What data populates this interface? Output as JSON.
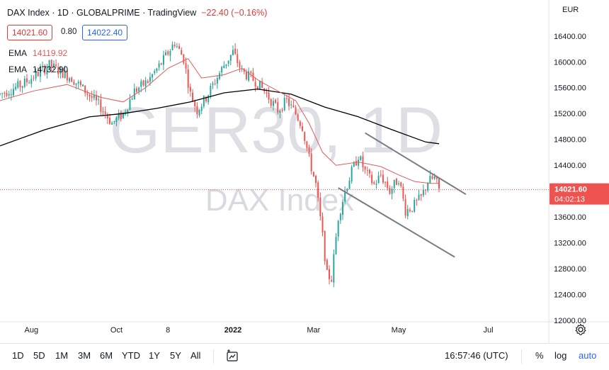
{
  "header": {
    "symbol": "DAX Index",
    "interval": "1D",
    "exchange": "GLOBALPRIME",
    "source": "TradingView",
    "separator": " · ",
    "change": "−22.40 (−0.16%)"
  },
  "quotes": {
    "bid": "14021.60",
    "spread": "0.80",
    "ask": "14022.40"
  },
  "indicators": [
    {
      "label": "EMA",
      "value": "14119.92",
      "color": "#e05c5c"
    },
    {
      "label": "EMA",
      "value": "14732.90",
      "color": "#000000"
    }
  ],
  "watermark": {
    "main": "GER30, 1D",
    "sub": "DAX Index"
  },
  "currency": "EUR",
  "last_price": {
    "price": "14021.60",
    "countdown": "04:02:13",
    "value": 14021.6,
    "color": "#ef5350"
  },
  "colors": {
    "up": "#26a69a",
    "down": "#ef5350",
    "ema_fast": "#e05c5c",
    "ema_slow": "#000000",
    "trendline": "#787b86"
  },
  "bottom_bar": {
    "timeframes": [
      "1D",
      "5D",
      "1M",
      "3M",
      "6M",
      "YTD",
      "1Y",
      "5Y",
      "All"
    ],
    "compare_icon": "compare-icon",
    "clock": "16:57:46 (UTC)",
    "options": {
      "percent": "%",
      "log": "log",
      "auto": "auto"
    },
    "settings_icon": "gear-icon"
  },
  "chart_data": {
    "type": "candlestick",
    "y_axis": {
      "ticks": [
        12000,
        12400,
        12800,
        13200,
        13600,
        14000,
        14400,
        14800,
        15200,
        15600,
        16000,
        16400
      ],
      "tick_labels": [
        "12000.00",
        "12400.00",
        "12800.00",
        "13200.00",
        "13600.00",
        "14000.00",
        "14400.00",
        "14800.00",
        "15200.00",
        "15600.00",
        "16000.00",
        "16400.00"
      ],
      "range": [
        12000,
        16650
      ]
    },
    "x_axis": {
      "labels": [
        "Aug",
        "Oct",
        "8",
        "2022",
        "Mar",
        "May",
        "Jul"
      ],
      "label_index": [
        14,
        52,
        75,
        104,
        140,
        178,
        218
      ],
      "bold_label": "2022",
      "range_index": [
        0,
        245
      ]
    },
    "price_path": [
      [
        0,
        15500
      ],
      [
        10,
        15650
      ],
      [
        22,
        15950
      ],
      [
        32,
        15750
      ],
      [
        38,
        15550
      ],
      [
        45,
        15300
      ],
      [
        50,
        15050
      ],
      [
        55,
        15200
      ],
      [
        60,
        15550
      ],
      [
        66,
        15700
      ],
      [
        72,
        15980
      ],
      [
        78,
        16300
      ],
      [
        82,
        16050
      ],
      [
        85,
        15500
      ],
      [
        88,
        15250
      ],
      [
        92,
        15450
      ],
      [
        96,
        15700
      ],
      [
        100,
        15950
      ],
      [
        104,
        16150
      ],
      [
        108,
        15850
      ],
      [
        114,
        15700
      ],
      [
        118,
        15550
      ],
      [
        124,
        15250
      ],
      [
        128,
        15400
      ],
      [
        132,
        15200
      ],
      [
        135,
        15000
      ],
      [
        138,
        14500
      ],
      [
        141,
        14100
      ],
      [
        144,
        13300
      ],
      [
        146,
        12700
      ],
      [
        148,
        12650
      ],
      [
        151,
        13600
      ],
      [
        154,
        14000
      ],
      [
        157,
        14300
      ],
      [
        160,
        14550
      ],
      [
        163,
        14300
      ],
      [
        167,
        14100
      ],
      [
        170,
        14250
      ],
      [
        174,
        14000
      ],
      [
        178,
        14200
      ],
      [
        181,
        13700
      ],
      [
        184,
        13750
      ],
      [
        188,
        13900
      ],
      [
        191,
        14150
      ],
      [
        194,
        14200
      ],
      [
        196,
        14021.6
      ]
    ],
    "ema_fast": [
      [
        0,
        15400
      ],
      [
        15,
        15550
      ],
      [
        30,
        15650
      ],
      [
        45,
        15450
      ],
      [
        55,
        15380
      ],
      [
        65,
        15600
      ],
      [
        75,
        15900
      ],
      [
        84,
        16050
      ],
      [
        90,
        15750
      ],
      [
        100,
        15800
      ],
      [
        108,
        15900
      ],
      [
        116,
        15700
      ],
      [
        124,
        15550
      ],
      [
        132,
        15400
      ],
      [
        138,
        15050
      ],
      [
        144,
        14600
      ],
      [
        150,
        14400
      ],
      [
        160,
        14450
      ],
      [
        170,
        14380
      ],
      [
        178,
        14250
      ],
      [
        185,
        14150
      ],
      [
        192,
        14120
      ],
      [
        196,
        14119.92
      ]
    ],
    "ema_slow": [
      [
        0,
        14700
      ],
      [
        20,
        14950
      ],
      [
        40,
        15150
      ],
      [
        55,
        15200
      ],
      [
        70,
        15280
      ],
      [
        85,
        15380
      ],
      [
        100,
        15520
      ],
      [
        115,
        15580
      ],
      [
        130,
        15500
      ],
      [
        145,
        15300
      ],
      [
        160,
        15150
      ],
      [
        175,
        14950
      ],
      [
        190,
        14760
      ],
      [
        196,
        14732.9
      ]
    ],
    "trendlines": [
      {
        "from": [
          163,
          14900
        ],
        "to": [
          208,
          13950
        ]
      },
      {
        "from": [
          151,
          14050
        ],
        "to": [
          203,
          12980
        ]
      }
    ],
    "last_price_line": 14021.6
  }
}
